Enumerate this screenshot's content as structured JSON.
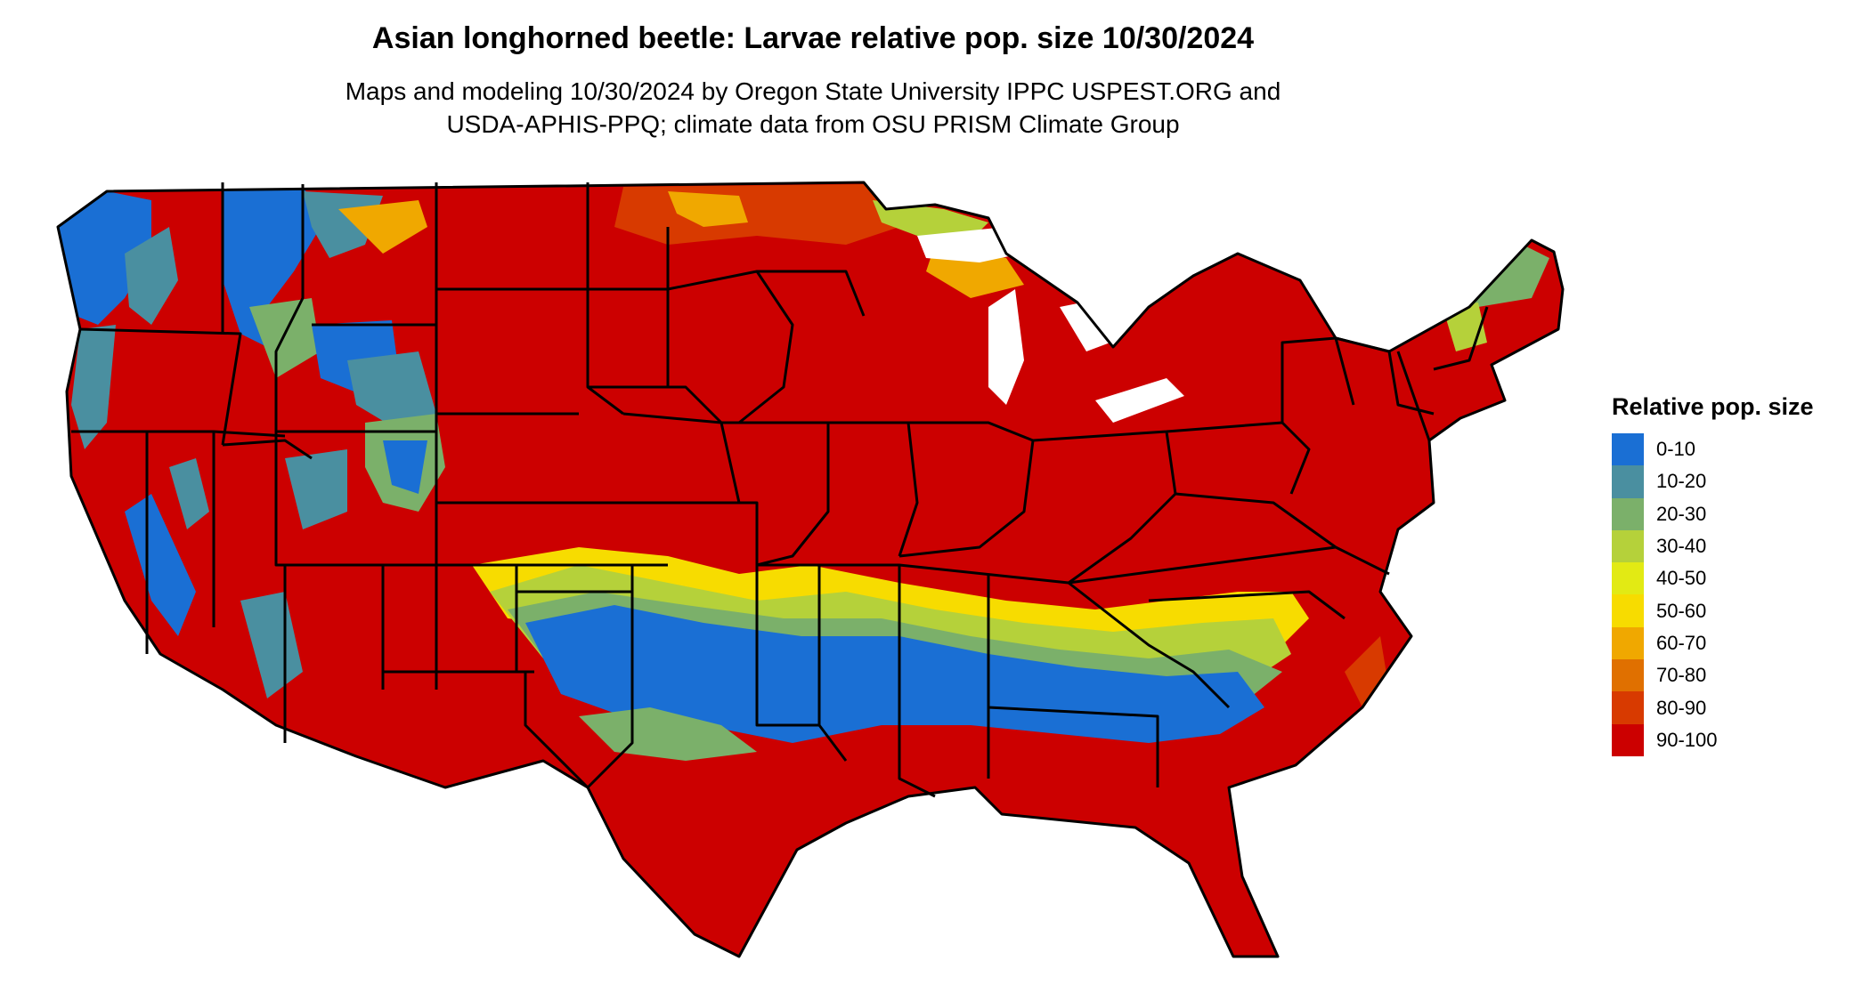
{
  "title": "Asian longhorned beetle: Larvae relative pop. size 10/30/2024",
  "subtitle_line1": "Maps and modeling 10/30/2024 by Oregon State University IPPC USPEST.ORG and",
  "subtitle_line2": "USDA-APHIS-PPQ; climate data from OSU PRISM Climate Group",
  "legend": {
    "title": "Relative pop. size",
    "items": [
      {
        "label": "0-10",
        "color": "#1a6fd4"
      },
      {
        "label": "10-20",
        "color": "#4a8fa0"
      },
      {
        "label": "20-30",
        "color": "#7bb06a"
      },
      {
        "label": "30-40",
        "color": "#b5d13a"
      },
      {
        "label": "40-50",
        "color": "#e2ea14"
      },
      {
        "label": "50-60",
        "color": "#f7dc00"
      },
      {
        "label": "60-70",
        "color": "#f0a800"
      },
      {
        "label": "70-80",
        "color": "#e07000"
      },
      {
        "label": "80-90",
        "color": "#d83a00"
      },
      {
        "label": "90-100",
        "color": "#cc0000"
      }
    ]
  },
  "map": {
    "region": "Contiguous United States",
    "background_class_color": "#cc0000",
    "border_color": "#000000"
  }
}
